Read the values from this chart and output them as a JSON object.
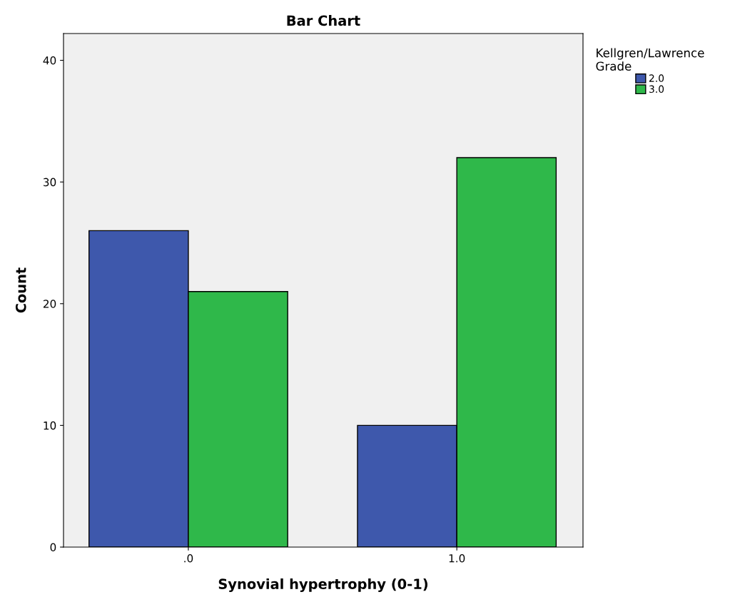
{
  "chart_data": {
    "type": "bar",
    "title": "Bar Chart",
    "xlabel": "Synovial hypertrophy (0-1)",
    "ylabel": "Count",
    "categories": [
      ".0",
      "1.0"
    ],
    "series": [
      {
        "name": "2.0",
        "color": "#3e58ac",
        "values": [
          26,
          10
        ]
      },
      {
        "name": "3.0",
        "color": "#2fb84a",
        "values": [
          21,
          32
        ]
      }
    ],
    "legend_title": "Kellgren/Lawrence\nGrade",
    "legend": "top right",
    "ylim": [
      0,
      42.2
    ],
    "yticks": [
      0,
      10,
      20,
      30,
      40
    ],
    "grid": false
  }
}
